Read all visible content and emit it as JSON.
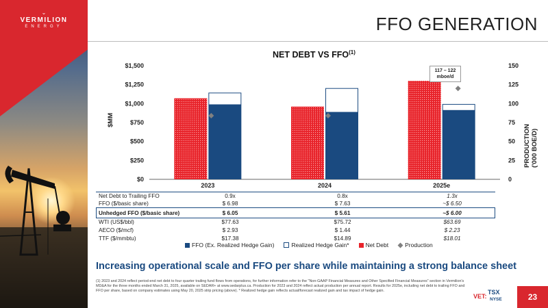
{
  "brand": {
    "name_line1": "VERMILION",
    "name_line2": "ENERGY",
    "accent": "#d9272e",
    "navy": "#1a4a80"
  },
  "slide": {
    "title": "FFO GENERATION",
    "page_number": "23",
    "ticker_vet": "VET:",
    "ticker_tsx": "TSX",
    "ticker_nyse": "NYSE"
  },
  "chart_data": {
    "type": "bar",
    "title": "NET DEBT VS FFO",
    "title_sup": "(1)",
    "categories": [
      "2023",
      "2024",
      "2025e"
    ],
    "ylabel": "$MM",
    "y2label": "PRODUCTION ('000 BOE/D)",
    "ylim": [
      0,
      1500
    ],
    "y2lim": [
      0,
      150
    ],
    "yticks": [
      "$0",
      "$250",
      "$500",
      "$750",
      "$1,000",
      "$1,250",
      "$1,500"
    ],
    "y2ticks": [
      "0",
      "25",
      "50",
      "75",
      "100",
      "125",
      "150"
    ],
    "series": [
      {
        "name": "Net Debt",
        "values": [
          1070,
          960,
          1300
        ],
        "color": "#e8232a",
        "pattern": "dots"
      },
      {
        "name": "FFO (Ex. Realized Hedge Gain)",
        "values": [
          985,
          885,
          910
        ],
        "color": "#1a4a80"
      },
      {
        "name": "Realized Hedge Gain*",
        "values": [
          155,
          315,
          80
        ],
        "color": "#ffffff",
        "outline": "#1a4a80"
      },
      {
        "name": "Production",
        "values": [
          84,
          84,
          120
        ],
        "color": "#808080",
        "marker": "diamond",
        "axis": "secondary"
      }
    ],
    "annotation": {
      "line1": "117 – 122",
      "line2": "mboe/d"
    },
    "legend_position": "bottom",
    "grid": false
  },
  "table": {
    "rows": [
      {
        "label": "Net Debt to Trailing FFO",
        "values": [
          "0.9x",
          "0.8x",
          "1.3x"
        ]
      },
      {
        "label": "FFO ($/basic share)",
        "values": [
          "$ 6.98",
          "$ 7.63",
          "~$ 6.50"
        ]
      },
      {
        "label": "Unhedged FFO ($/basic share)",
        "values": [
          "$ 6.05",
          "$ 5.61",
          "~$ 6.00"
        ]
      },
      {
        "label": "WTI (US$/bbl)",
        "values": [
          "$77.63",
          "$75.72",
          "$63.69"
        ]
      },
      {
        "label": "AECO ($/mcf)",
        "values": [
          "$ 2.93",
          "$ 1.44",
          "$ 2.23"
        ]
      },
      {
        "label": "TTF ($/mmbtu)",
        "values": [
          "$17.38",
          "$14.89",
          "$18.01"
        ]
      }
    ]
  },
  "headline": "Increasing operational scale and FFO per share while maintaining a strong balance sheet",
  "footnote": "(1) 2023 and 2024 reflect period-end net debt to four quarter trailing fund flows from operations, for further information refer to the \"Non-GAAP Financial Measures and Other Specified Financial Measures\" section in Vermilion's MD&A for the three months ended March 31, 2025, available on SEDAR+ at www.sedarplus.ca. Production for 2023 and 2024 reflect actual production per annual report. Results for 2025e, including net debt to trailing FFO and FFO per share, based on company estimates using May 20, 2025 strip pricing (above). * Realized hedge gain reflects actual/forecast realized gain and tax impact of hedge gain."
}
